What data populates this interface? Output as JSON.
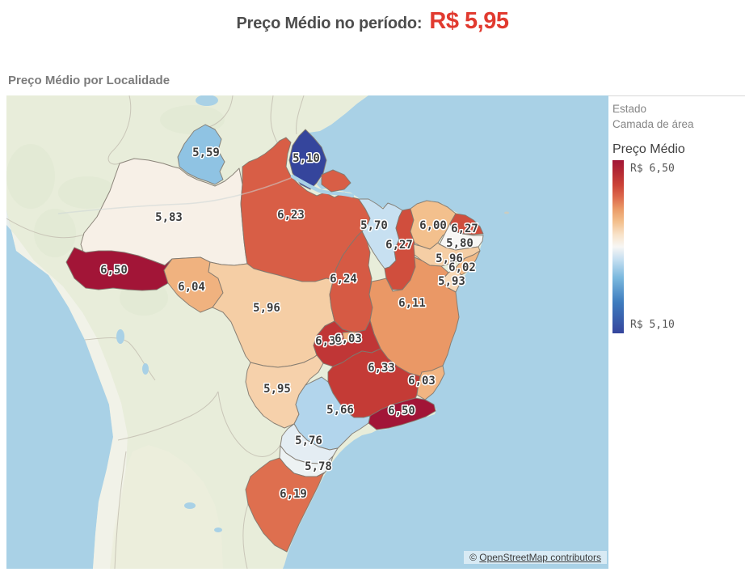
{
  "header": {
    "label": "Preço Médio no período:",
    "value": "R$ 5,95"
  },
  "map": {
    "subtitle": "Preço Médio por Localidade",
    "attribution": {
      "prefix": "©",
      "link": "OpenStreetMap contributors"
    }
  },
  "legend": {
    "layer_name": "Estado",
    "layer_type": "Camada de área",
    "measure": "Preço Médio",
    "max_label": "R$ 6,50",
    "min_label": "R$ 5,10"
  },
  "colors": {
    "accent_red": "#e13a2f",
    "title_gray": "#4d4d4d",
    "ocean": "#a9d1e6",
    "land": "#e8edda",
    "state_border": "#7f786e",
    "scale_stops": [
      [
        5.1,
        "#35459c"
      ],
      [
        5.35,
        "#3e7cbe"
      ],
      [
        5.55,
        "#7ab8de"
      ],
      [
        5.7,
        "#c7e0f1"
      ],
      [
        5.8,
        "#f7f6f4"
      ],
      [
        5.9,
        "#f8e2c8"
      ],
      [
        6.0,
        "#f3c08d"
      ],
      [
        6.1,
        "#eb9d69"
      ],
      [
        6.2,
        "#dd6a4c"
      ],
      [
        6.3,
        "#cb4237"
      ],
      [
        6.4,
        "#b52a34"
      ],
      [
        6.5,
        "#a21537"
      ]
    ]
  },
  "chart_data": {
    "type": "choropleth",
    "title": "Preço Médio por Localidade",
    "measure": "Preço Médio",
    "scale": {
      "min": 5.1,
      "max": 6.5,
      "min_label": "R$ 5,10",
      "max_label": "R$ 6,50",
      "diverging_midpoint": 5.8
    },
    "regions": [
      {
        "id": "RR",
        "value": 5.59,
        "label": "5,59"
      },
      {
        "id": "AP",
        "value": 5.1,
        "label": "5,10"
      },
      {
        "id": "AM",
        "value": 5.83,
        "label": "5,83"
      },
      {
        "id": "PA",
        "value": 6.23,
        "label": "6,23"
      },
      {
        "id": "MA",
        "value": 5.7,
        "label": "5,70"
      },
      {
        "id": "PI",
        "value": 6.27,
        "label": "6,27"
      },
      {
        "id": "CE",
        "value": 6.0,
        "label": "6,00"
      },
      {
        "id": "RN",
        "value": 6.27,
        "label": "6,27"
      },
      {
        "id": "PB",
        "value": 5.8,
        "label": "5,80"
      },
      {
        "id": "PE",
        "value": 5.96,
        "label": "5,96"
      },
      {
        "id": "AL",
        "value": 6.02,
        "label": "6,02"
      },
      {
        "id": "SE",
        "value": 5.93,
        "label": "5,93"
      },
      {
        "id": "AC",
        "value": 6.5,
        "label": "6,50"
      },
      {
        "id": "RO",
        "value": 6.04,
        "label": "6,04"
      },
      {
        "id": "MT",
        "value": 5.96,
        "label": "5,96"
      },
      {
        "id": "TO",
        "value": 6.24,
        "label": "6,24"
      },
      {
        "id": "BA",
        "value": 6.11,
        "label": "6,11"
      },
      {
        "id": "GO",
        "value": 6.35,
        "label": "6,35"
      },
      {
        "id": "DF",
        "value": 6.03,
        "label": "6,03"
      },
      {
        "id": "MS",
        "value": 5.95,
        "label": "5,95"
      },
      {
        "id": "MG",
        "value": 6.33,
        "label": "6,33"
      },
      {
        "id": "ES",
        "value": 6.03,
        "label": "6,03"
      },
      {
        "id": "RJ",
        "value": 6.5,
        "label": "6,50"
      },
      {
        "id": "SP",
        "value": 5.66,
        "label": "5,66"
      },
      {
        "id": "PR",
        "value": 5.76,
        "label": "5,76"
      },
      {
        "id": "SC",
        "value": 5.78,
        "label": "5,78"
      },
      {
        "id": "RS",
        "value": 6.19,
        "label": "6,19"
      }
    ]
  }
}
